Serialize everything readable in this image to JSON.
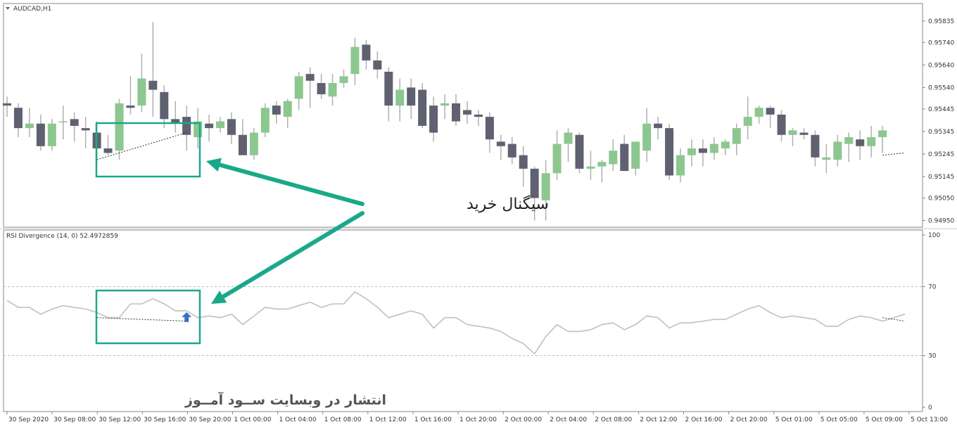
{
  "chart_data": [
    {
      "type": "candlestick",
      "title": "AUDCAD,H1",
      "ylim": [
        0.9493,
        0.95875
      ],
      "y_ticks": [
        "0.95835",
        "0.95740",
        "0.95640",
        "0.95540",
        "0.95445",
        "0.95345",
        "0.95245",
        "0.95145",
        "0.95050",
        "0.94950"
      ],
      "colors": {
        "bull": "#8cc78f",
        "bear": "#5f6170",
        "wick": "#b0b0b0",
        "trendline": "#333333"
      },
      "ohlc": [
        [
          0.9547,
          0.955,
          0.9541,
          0.9546
        ],
        [
          0.9545,
          0.9547,
          0.9532,
          0.9536
        ],
        [
          0.9536,
          0.9545,
          0.9532,
          0.9538
        ],
        [
          0.9538,
          0.9542,
          0.9526,
          0.9528
        ],
        [
          0.9528,
          0.954,
          0.9526,
          0.9538
        ],
        [
          0.9539,
          0.9546,
          0.9531,
          0.9539
        ],
        [
          0.954,
          0.9543,
          0.953,
          0.9537
        ],
        [
          0.9536,
          0.9541,
          0.9527,
          0.9535
        ],
        [
          0.9534,
          0.9539,
          0.9521,
          0.9527
        ],
        [
          0.9527,
          0.9533,
          0.9524,
          0.9525
        ],
        [
          0.9526,
          0.9549,
          0.9522,
          0.9547
        ],
        [
          0.9546,
          0.9559,
          0.9542,
          0.9545
        ],
        [
          0.9546,
          0.9569,
          0.9543,
          0.9558
        ],
        [
          0.9557,
          0.9583,
          0.9541,
          0.9553
        ],
        [
          0.9552,
          0.9555,
          0.9536,
          0.954
        ],
        [
          0.954,
          0.9548,
          0.9534,
          0.9538
        ],
        [
          0.9541,
          0.9546,
          0.9526,
          0.9533
        ],
        [
          0.9532,
          0.9545,
          0.9527,
          0.9539
        ],
        [
          0.9538,
          0.9542,
          0.953,
          0.9536
        ],
        [
          0.9536,
          0.9541,
          0.9534,
          0.9539
        ],
        [
          0.954,
          0.9543,
          0.9529,
          0.9533
        ],
        [
          0.9533,
          0.954,
          0.9524,
          0.9524
        ],
        [
          0.9524,
          0.9536,
          0.9522,
          0.9534
        ],
        [
          0.9534,
          0.9547,
          0.9532,
          0.9545
        ],
        [
          0.9546,
          0.9548,
          0.9538,
          0.9542
        ],
        [
          0.9541,
          0.9549,
          0.9536,
          0.9548
        ],
        [
          0.9549,
          0.9561,
          0.9544,
          0.9559
        ],
        [
          0.956,
          0.9563,
          0.9545,
          0.9557
        ],
        [
          0.9556,
          0.956,
          0.9549,
          0.9551
        ],
        [
          0.955,
          0.956,
          0.9546,
          0.9556
        ],
        [
          0.9556,
          0.9562,
          0.9554,
          0.9559
        ],
        [
          0.956,
          0.9576,
          0.9555,
          0.9572
        ],
        [
          0.9573,
          0.9575,
          0.9562,
          0.9566
        ],
        [
          0.9566,
          0.957,
          0.9558,
          0.9562
        ],
        [
          0.9561,
          0.9563,
          0.9539,
          0.9546
        ],
        [
          0.9546,
          0.9558,
          0.9539,
          0.9553
        ],
        [
          0.9554,
          0.9558,
          0.954,
          0.9546
        ],
        [
          0.9553,
          0.9556,
          0.9536,
          0.9537
        ],
        [
          0.9546,
          0.955,
          0.953,
          0.9534
        ],
        [
          0.9546,
          0.9551,
          0.954,
          0.9547
        ],
        [
          0.9547,
          0.9551,
          0.9537,
          0.9539
        ],
        [
          0.9544,
          0.9548,
          0.9538,
          0.9542
        ],
        [
          0.9542,
          0.9544,
          0.9537,
          0.9541
        ],
        [
          0.9541,
          0.9543,
          0.9525,
          0.9531
        ],
        [
          0.953,
          0.9533,
          0.9522,
          0.9528
        ],
        [
          0.9529,
          0.9532,
          0.952,
          0.9523
        ],
        [
          0.9524,
          0.9528,
          0.951,
          0.9518
        ],
        [
          0.9518,
          0.9519,
          0.9495,
          0.9505
        ],
        [
          0.9504,
          0.9522,
          0.9495,
          0.9516
        ],
        [
          0.9516,
          0.9535,
          0.9513,
          0.9529
        ],
        [
          0.9529,
          0.9536,
          0.9521,
          0.9534
        ],
        [
          0.9533,
          0.9534,
          0.9516,
          0.9518
        ],
        [
          0.9518,
          0.9526,
          0.9513,
          0.9519
        ],
        [
          0.9519,
          0.9522,
          0.9512,
          0.9521
        ],
        [
          0.952,
          0.9531,
          0.9517,
          0.9526
        ],
        [
          0.9529,
          0.9533,
          0.9517,
          0.9517
        ],
        [
          0.9518,
          0.953,
          0.9515,
          0.953
        ],
        [
          0.9526,
          0.9545,
          0.9521,
          0.9538
        ],
        [
          0.9538,
          0.9541,
          0.9531,
          0.9536
        ],
        [
          0.9536,
          0.9538,
          0.9513,
          0.9515
        ],
        [
          0.9515,
          0.9527,
          0.9512,
          0.9524
        ],
        [
          0.9524,
          0.9531,
          0.9519,
          0.9527
        ],
        [
          0.9527,
          0.9531,
          0.9519,
          0.9525
        ],
        [
          0.9525,
          0.9532,
          0.9522,
          0.9529
        ],
        [
          0.9527,
          0.9531,
          0.9524,
          0.953
        ],
        [
          0.9529,
          0.9538,
          0.9524,
          0.9536
        ],
        [
          0.9537,
          0.955,
          0.9531,
          0.9541
        ],
        [
          0.9541,
          0.9546,
          0.9538,
          0.9545
        ],
        [
          0.9545,
          0.9546,
          0.9536,
          0.9542
        ],
        [
          0.9542,
          0.9544,
          0.953,
          0.9533
        ],
        [
          0.9533,
          0.9536,
          0.9528,
          0.9535
        ],
        [
          0.9534,
          0.9536,
          0.9531,
          0.9533
        ],
        [
          0.9533,
          0.9535,
          0.9519,
          0.9523
        ],
        [
          0.9522,
          0.9529,
          0.9516,
          0.9523
        ],
        [
          0.9522,
          0.9533,
          0.9519,
          0.953
        ],
        [
          0.9529,
          0.9534,
          0.9521,
          0.9532
        ],
        [
          0.9531,
          0.9535,
          0.9522,
          0.9528
        ],
        [
          0.9528,
          0.9537,
          0.9523,
          0.9532
        ],
        [
          0.9532,
          0.9537,
          0.9525,
          0.9535
        ]
      ],
      "divergence_line": [
        [
          8,
          0.9522
        ],
        [
          16,
          0.9534
        ]
      ],
      "divergence_line_right": [
        [
          78,
          0.9524
        ],
        [
          80,
          0.9525
        ]
      ]
    },
    {
      "type": "line",
      "title": "RSI Divergence (14, 0) 52.4972859",
      "ylim": [
        0,
        100
      ],
      "y_ticks": [
        "100",
        "70",
        "30",
        "0"
      ],
      "levels": [
        70,
        30
      ],
      "colors": {
        "line": "#c0c0c0",
        "level": "#bbbbbb",
        "trendline": "#333333",
        "arrow": "#3b6fc4"
      },
      "values": [
        62,
        58,
        58,
        54,
        57,
        59,
        58,
        57,
        55,
        52,
        52,
        60,
        60,
        63,
        60,
        56,
        56,
        52,
        53,
        52,
        54,
        48,
        53,
        58,
        57,
        57,
        59,
        61,
        58,
        60,
        60,
        67,
        63,
        58,
        52,
        54,
        56,
        54,
        46,
        52,
        52,
        48,
        47,
        46,
        44,
        40,
        37,
        31,
        41,
        48,
        44,
        44,
        45,
        48,
        49,
        45,
        48,
        53,
        52,
        46,
        49,
        49,
        50,
        51,
        51,
        54,
        57,
        59,
        55,
        52,
        53,
        52,
        51,
        47,
        47,
        51,
        53,
        52,
        50,
        52,
        54
      ],
      "divergence_line": [
        [
          8,
          52
        ],
        [
          16,
          50
        ]
      ],
      "divergence_line_right": [
        [
          78,
          52
        ],
        [
          80,
          50
        ]
      ],
      "arrow_index": 16
    }
  ],
  "x_labels": [
    "30 Sep 2020",
    "30 Sep 08:00",
    "30 Sep 12:00",
    "30 Sep 16:00",
    "30 Sep 20:00",
    "1 Oct 00:00",
    "1 Oct 04:00",
    "1 Oct 08:00",
    "1 Oct 12:00",
    "1 Oct 16:00",
    "1 Oct 20:00",
    "2 Oct 00:00",
    "2 Oct 04:00",
    "2 Oct 08:00",
    "2 Oct 12:00",
    "2 Oct 16:00",
    "2 Oct 20:00",
    "5 Oct 01:00",
    "5 Oct 05:00",
    "5 Oct 09:00",
    "5 Oct 13:00"
  ],
  "annotation": {
    "label": "سیگنال خرید",
    "box_color": "#1aa88a",
    "arrow_color": "#1aa88a"
  },
  "watermark": "انتشار در وبسایت ســود آمــوز"
}
